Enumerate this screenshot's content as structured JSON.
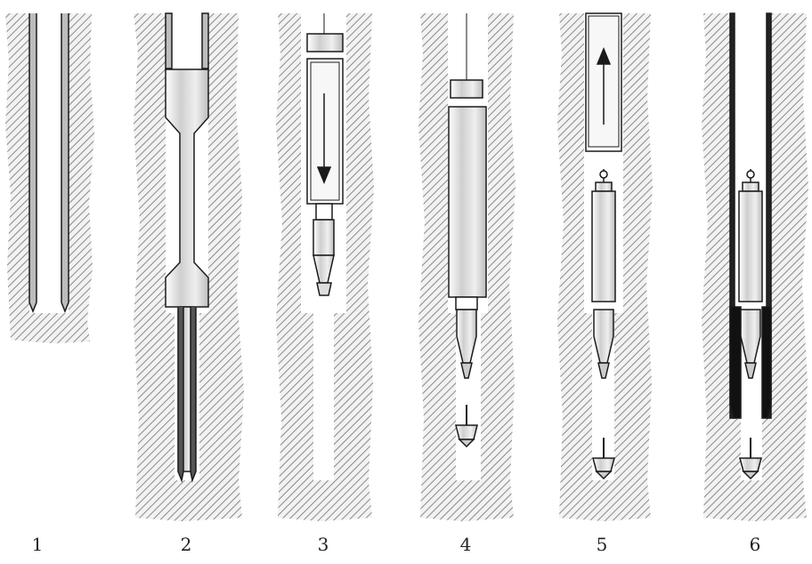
{
  "figure": {
    "steps": [
      {
        "label": "1"
      },
      {
        "label": "2"
      },
      {
        "label": "3"
      },
      {
        "label": "4"
      },
      {
        "label": "5"
      },
      {
        "label": "6"
      }
    ],
    "colors": {
      "soil_hatch": "#8a8a8a",
      "outline": "#1a1a1a",
      "casing": "#222222",
      "shade": "#d4d4d4",
      "background": "#ffffff"
    },
    "icons": [
      "down-arrow-icon",
      "up-arrow-icon"
    ]
  }
}
